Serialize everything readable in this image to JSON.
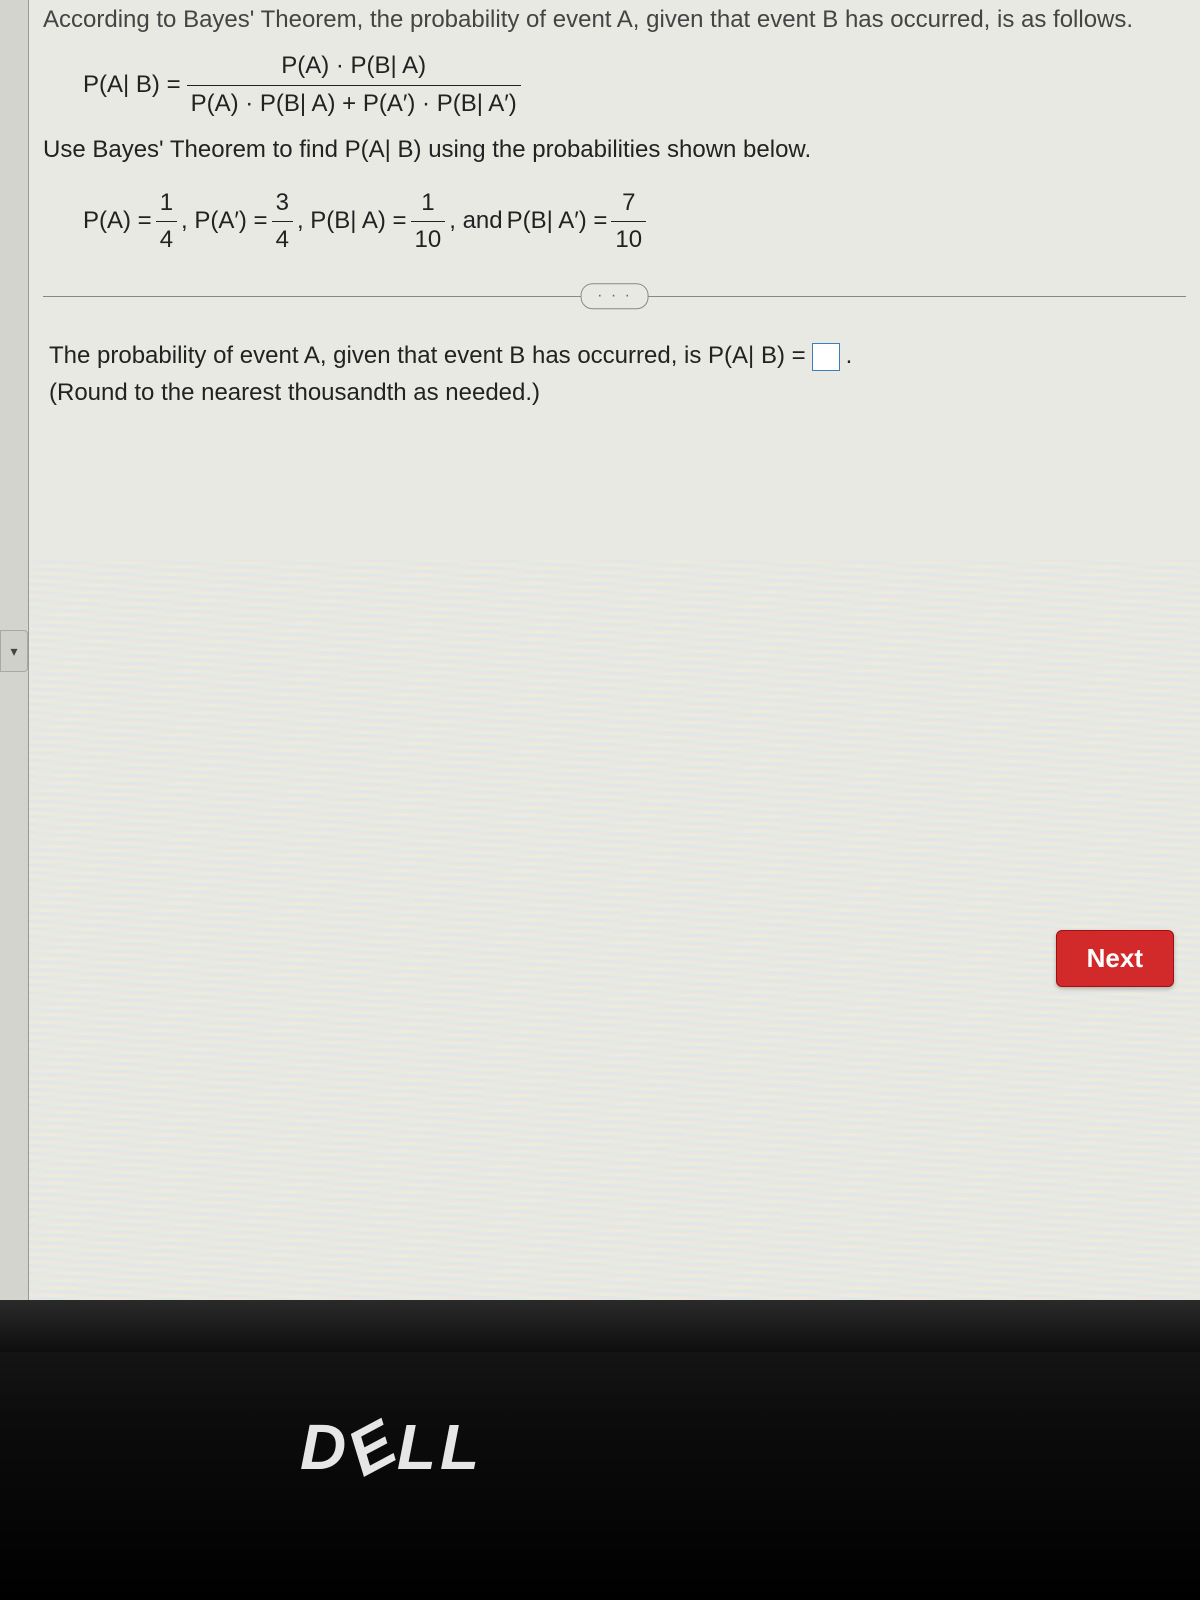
{
  "problem": {
    "title_line": "According to Bayes' Theorem, the probability of event A, given that event B has occurred, is as follows.",
    "formula_lhs": "P(A| B) =",
    "formula_numerator": "P(A) · P(B| A)",
    "formula_denominator": "P(A) · P(B| A) + P(A′) · P(B| A′)",
    "instruction": "Use Bayes' Theorem to find P(A| B) using the probabilities shown below.",
    "given": {
      "pA_label": "P(A) =",
      "pA_num": "1",
      "pA_den": "4",
      "pAc_label": ", P(A′) =",
      "pAc_num": "3",
      "pAc_den": "4",
      "pBA_label": ", P(B| A) =",
      "pBA_num": "1",
      "pBA_den": "10",
      "and": ", and ",
      "pBAc_label": "P(B| A′) =",
      "pBAc_num": "7",
      "pBAc_den": "10"
    },
    "ellipsis": "· · ·",
    "answer_prefix": "The probability of event A, given that event B has occurred, is P(A| B) =",
    "answer_suffix": ".",
    "round_note": "(Round to the nearest thousandth as needed.)"
  },
  "ui": {
    "next": "Next",
    "tab_glyph": "▾",
    "brand": "DELL"
  },
  "style": {
    "bg": "#e9e9e4",
    "text": "#222222",
    "rule": "#888888",
    "input_border": "#3b7fbf",
    "next_bg": "#d22a2a",
    "next_text": "#ffffff",
    "brand_color": "#e6e6e6"
  }
}
